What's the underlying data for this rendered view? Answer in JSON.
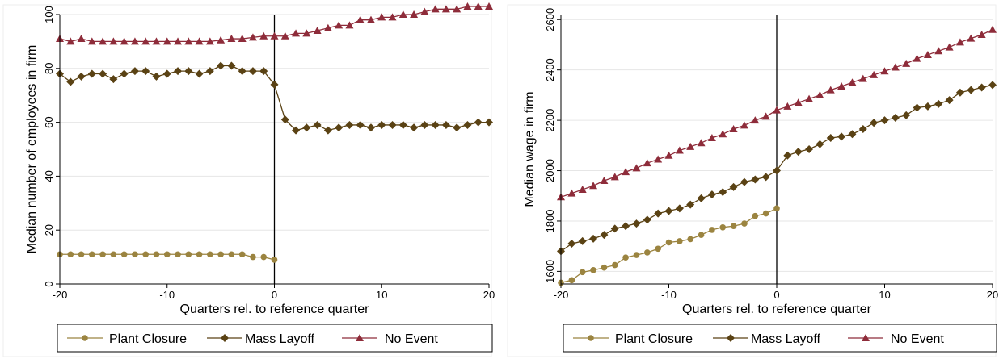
{
  "colors": {
    "plant_closure": "#9b8440",
    "mass_layoff": "#5a4214",
    "no_event": "#8e2c3a",
    "grid": "#e6e6e6",
    "ref_line": "#000000"
  },
  "legend": {
    "plant_closure": "Plant Closure",
    "mass_layoff": "Mass Layoff",
    "no_event": "No Event"
  },
  "chart_data": [
    {
      "type": "line",
      "xlabel": "Quarters rel. to reference quarter",
      "ylabel": "Median number of employees in firm",
      "xlim": [
        -20,
        20
      ],
      "ylim": [
        0,
        100
      ],
      "xticks": [
        "-20",
        "-10",
        "0",
        "10",
        "20"
      ],
      "yticks": [
        "0",
        "20",
        "40",
        "60",
        "80",
        "100"
      ],
      "grid": true,
      "reference_line_x": 0,
      "legend_position": "bottom",
      "series": [
        {
          "name": "Plant Closure",
          "marker": "circle",
          "x": [
            -20,
            -19,
            -18,
            -17,
            -16,
            -15,
            -14,
            -13,
            -12,
            -11,
            -10,
            -9,
            -8,
            -7,
            -6,
            -5,
            -4,
            -3,
            -2,
            -1,
            0
          ],
          "y": [
            11,
            11,
            11,
            11,
            11,
            11,
            11,
            11,
            11,
            11,
            11,
            11,
            11,
            11,
            11,
            11,
            11,
            11,
            10,
            10,
            9
          ]
        },
        {
          "name": "Mass Layoff",
          "marker": "diamond",
          "x": [
            -20,
            -19,
            -18,
            -17,
            -16,
            -15,
            -14,
            -13,
            -12,
            -11,
            -10,
            -9,
            -8,
            -7,
            -6,
            -5,
            -4,
            -3,
            -2,
            -1,
            0,
            1,
            2,
            3,
            4,
            5,
            6,
            7,
            8,
            9,
            10,
            11,
            12,
            13,
            14,
            15,
            16,
            17,
            18,
            19,
            20
          ],
          "y": [
            78,
            75,
            77,
            78,
            78,
            76,
            78,
            79,
            79,
            77,
            78,
            79,
            79,
            78,
            79,
            81,
            81,
            79,
            79,
            79,
            74,
            61,
            57,
            58,
            59,
            57,
            58,
            59,
            59,
            58,
            59,
            59,
            59,
            58,
            59,
            59,
            59,
            58,
            59,
            60,
            60
          ]
        },
        {
          "name": "No Event",
          "marker": "triangle",
          "x": [
            -20,
            -19,
            -18,
            -17,
            -16,
            -15,
            -14,
            -13,
            -12,
            -11,
            -10,
            -9,
            -8,
            -7,
            -6,
            -5,
            -4,
            -3,
            -2,
            -1,
            0,
            1,
            2,
            3,
            4,
            5,
            6,
            7,
            8,
            9,
            10,
            11,
            12,
            13,
            14,
            15,
            16,
            17,
            18,
            19,
            20
          ],
          "y": [
            91,
            90,
            91,
            90,
            90,
            90,
            90,
            90,
            90,
            90,
            90,
            90,
            90,
            90,
            90,
            90.5,
            91,
            91,
            91.5,
            92,
            92,
            92,
            93,
            93,
            94,
            95,
            96,
            96,
            98,
            98,
            99,
            99,
            100,
            100,
            101,
            102,
            102,
            102,
            103,
            103,
            103
          ]
        }
      ]
    },
    {
      "type": "line",
      "xlabel": "Quarters rel. to reference quarter",
      "ylabel": "Median wage in firm",
      "xlim": [
        -20,
        20
      ],
      "ylim": [
        1550,
        2620
      ],
      "xticks": [
        "-20",
        "-10",
        "0",
        "10",
        "20"
      ],
      "yticks": [
        "1600",
        "1800",
        "2000",
        "2200",
        "2400",
        "2600"
      ],
      "grid": true,
      "reference_line_x": 0,
      "legend_position": "bottom",
      "series": [
        {
          "name": "Plant Closure",
          "marker": "circle",
          "x": [
            -20,
            -19,
            -18,
            -17,
            -16,
            -15,
            -14,
            -13,
            -12,
            -11,
            -10,
            -9,
            -8,
            -7,
            -6,
            -5,
            -4,
            -3,
            -2,
            -1,
            0
          ],
          "y": [
            1555,
            1565,
            1597,
            1605,
            1615,
            1625,
            1655,
            1665,
            1675,
            1690,
            1715,
            1720,
            1728,
            1745,
            1765,
            1775,
            1780,
            1790,
            1820,
            1830,
            1850
          ]
        },
        {
          "name": "Mass Layoff",
          "marker": "diamond",
          "x": [
            -20,
            -19,
            -18,
            -17,
            -16,
            -15,
            -14,
            -13,
            -12,
            -11,
            -10,
            -9,
            -8,
            -7,
            -6,
            -5,
            -4,
            -3,
            -2,
            -1,
            0,
            1,
            2,
            3,
            4,
            5,
            6,
            7,
            8,
            9,
            10,
            11,
            12,
            13,
            14,
            15,
            16,
            17,
            18,
            19,
            20
          ],
          "y": [
            1680,
            1710,
            1720,
            1730,
            1745,
            1770,
            1780,
            1790,
            1805,
            1830,
            1840,
            1850,
            1865,
            1890,
            1905,
            1915,
            1935,
            1955,
            1965,
            1975,
            2000,
            2060,
            2075,
            2085,
            2105,
            2130,
            2135,
            2145,
            2165,
            2190,
            2200,
            2210,
            2220,
            2250,
            2255,
            2265,
            2280,
            2310,
            2320,
            2330,
            2340
          ]
        },
        {
          "name": "No Event",
          "marker": "triangle",
          "x": [
            -20,
            -19,
            -18,
            -17,
            -16,
            -15,
            -14,
            -13,
            -12,
            -11,
            -10,
            -9,
            -8,
            -7,
            -6,
            -5,
            -4,
            -3,
            -2,
            -1,
            0,
            1,
            2,
            3,
            4,
            5,
            6,
            7,
            8,
            9,
            10,
            11,
            12,
            13,
            14,
            15,
            16,
            17,
            18,
            19,
            20
          ],
          "y": [
            1895,
            1910,
            1925,
            1940,
            1960,
            1975,
            1995,
            2010,
            2030,
            2045,
            2060,
            2080,
            2095,
            2110,
            2130,
            2145,
            2165,
            2180,
            2200,
            2215,
            2240,
            2255,
            2270,
            2285,
            2300,
            2320,
            2335,
            2350,
            2365,
            2380,
            2395,
            2410,
            2425,
            2445,
            2460,
            2475,
            2490,
            2510,
            2525,
            2540,
            2560
          ]
        }
      ]
    }
  ]
}
